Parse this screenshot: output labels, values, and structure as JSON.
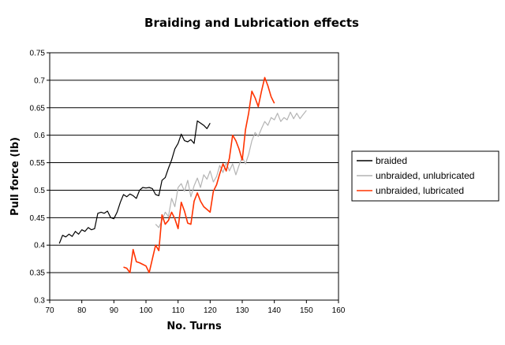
{
  "chart_data": {
    "type": "line",
    "title": "Braiding and Lubrication effects",
    "xlabel": "No. Turns",
    "ylabel": "Pull force (lb)",
    "xlim": [
      70,
      160
    ],
    "ylim": [
      0.3,
      0.75
    ],
    "x_ticks": [
      "70",
      "80",
      "90",
      "100",
      "110",
      "120",
      "130",
      "140",
      "150",
      "160"
    ],
    "y_ticks": [
      "0.3",
      "0.35",
      "0.4",
      "0.45",
      "0.5",
      "0.55",
      "0.6",
      "0.65",
      "0.7",
      "0.75"
    ],
    "grid": "horizontal major gridlines",
    "legend_position": "right",
    "series": [
      {
        "name": "braided",
        "color": "#000000",
        "points": [
          [
            73,
            0.403
          ],
          [
            74,
            0.418
          ],
          [
            75,
            0.415
          ],
          [
            76,
            0.42
          ],
          [
            77,
            0.416
          ],
          [
            78,
            0.425
          ],
          [
            79,
            0.42
          ],
          [
            80,
            0.428
          ],
          [
            81,
            0.425
          ],
          [
            82,
            0.432
          ],
          [
            83,
            0.428
          ],
          [
            84,
            0.43
          ],
          [
            85,
            0.458
          ],
          [
            86,
            0.46
          ],
          [
            87,
            0.458
          ],
          [
            88,
            0.462
          ],
          [
            89,
            0.45
          ],
          [
            90,
            0.448
          ],
          [
            91,
            0.46
          ],
          [
            92,
            0.478
          ],
          [
            93,
            0.492
          ],
          [
            94,
            0.488
          ],
          [
            95,
            0.493
          ],
          [
            96,
            0.49
          ],
          [
            97,
            0.485
          ],
          [
            98,
            0.5
          ],
          [
            99,
            0.505
          ],
          [
            100,
            0.504
          ],
          [
            101,
            0.505
          ],
          [
            102,
            0.503
          ],
          [
            103,
            0.492
          ],
          [
            104,
            0.49
          ],
          [
            105,
            0.518
          ],
          [
            106,
            0.523
          ],
          [
            107,
            0.54
          ],
          [
            108,
            0.555
          ],
          [
            109,
            0.575
          ],
          [
            110,
            0.585
          ],
          [
            111,
            0.602
          ],
          [
            112,
            0.59
          ],
          [
            113,
            0.588
          ],
          [
            114,
            0.592
          ],
          [
            115,
            0.585
          ],
          [
            116,
            0.626
          ],
          [
            117,
            0.622
          ],
          [
            118,
            0.618
          ],
          [
            119,
            0.612
          ],
          [
            120,
            0.622
          ]
        ]
      },
      {
        "name": "unbraided, unlubricated",
        "color": "#b4b4b4",
        "points": [
          [
            103,
            0.438
          ],
          [
            104,
            0.432
          ],
          [
            105,
            0.445
          ],
          [
            106,
            0.46
          ],
          [
            107,
            0.452
          ],
          [
            108,
            0.485
          ],
          [
            109,
            0.47
          ],
          [
            110,
            0.505
          ],
          [
            111,
            0.512
          ],
          [
            112,
            0.498
          ],
          [
            113,
            0.518
          ],
          [
            114,
            0.488
          ],
          [
            115,
            0.508
          ],
          [
            116,
            0.522
          ],
          [
            117,
            0.505
          ],
          [
            118,
            0.528
          ],
          [
            119,
            0.52
          ],
          [
            120,
            0.535
          ],
          [
            121,
            0.515
          ],
          [
            122,
            0.525
          ],
          [
            123,
            0.545
          ],
          [
            124,
            0.532
          ],
          [
            125,
            0.55
          ],
          [
            126,
            0.535
          ],
          [
            127,
            0.548
          ],
          [
            128,
            0.528
          ],
          [
            129,
            0.545
          ],
          [
            130,
            0.56
          ],
          [
            131,
            0.548
          ],
          [
            132,
            0.565
          ],
          [
            133,
            0.59
          ],
          [
            134,
            0.605
          ],
          [
            135,
            0.598
          ],
          [
            136,
            0.612
          ],
          [
            137,
            0.625
          ],
          [
            138,
            0.618
          ],
          [
            139,
            0.632
          ],
          [
            140,
            0.628
          ],
          [
            141,
            0.64
          ],
          [
            142,
            0.625
          ],
          [
            143,
            0.632
          ],
          [
            144,
            0.628
          ],
          [
            145,
            0.642
          ],
          [
            146,
            0.63
          ],
          [
            147,
            0.64
          ],
          [
            148,
            0.63
          ],
          [
            149,
            0.638
          ],
          [
            150,
            0.645
          ]
        ]
      },
      {
        "name": "unbraided, lubricated",
        "color": "#ff3300",
        "points": [
          [
            93,
            0.36
          ],
          [
            94,
            0.358
          ],
          [
            95,
            0.35
          ],
          [
            96,
            0.392
          ],
          [
            97,
            0.37
          ],
          [
            98,
            0.368
          ],
          [
            99,
            0.365
          ],
          [
            100,
            0.362
          ],
          [
            101,
            0.35
          ],
          [
            102,
            0.375
          ],
          [
            103,
            0.4
          ],
          [
            104,
            0.39
          ],
          [
            105,
            0.455
          ],
          [
            106,
            0.438
          ],
          [
            107,
            0.445
          ],
          [
            108,
            0.46
          ],
          [
            109,
            0.448
          ],
          [
            110,
            0.43
          ],
          [
            111,
            0.478
          ],
          [
            112,
            0.462
          ],
          [
            113,
            0.44
          ],
          [
            114,
            0.438
          ],
          [
            115,
            0.48
          ],
          [
            116,
            0.495
          ],
          [
            117,
            0.48
          ],
          [
            118,
            0.47
          ],
          [
            119,
            0.465
          ],
          [
            120,
            0.46
          ],
          [
            121,
            0.498
          ],
          [
            122,
            0.51
          ],
          [
            123,
            0.53
          ],
          [
            124,
            0.548
          ],
          [
            125,
            0.535
          ],
          [
            126,
            0.558
          ],
          [
            127,
            0.6
          ],
          [
            128,
            0.59
          ],
          [
            129,
            0.575
          ],
          [
            130,
            0.555
          ],
          [
            131,
            0.61
          ],
          [
            132,
            0.64
          ],
          [
            133,
            0.68
          ],
          [
            134,
            0.668
          ],
          [
            135,
            0.652
          ],
          [
            136,
            0.68
          ],
          [
            137,
            0.705
          ],
          [
            138,
            0.69
          ],
          [
            139,
            0.67
          ],
          [
            140,
            0.658
          ]
        ]
      }
    ]
  }
}
